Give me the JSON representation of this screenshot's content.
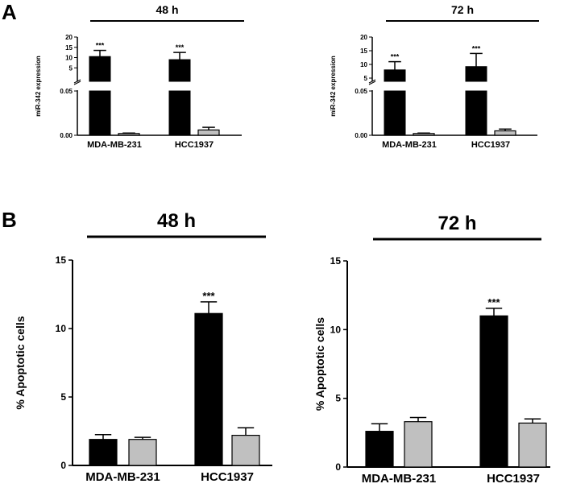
{
  "panel_labels": [
    "A",
    "B"
  ],
  "chart_data": [
    {
      "type": "bar",
      "panel": "A",
      "title": "48 h",
      "ylabel": "miR-342 expression",
      "axis_break": true,
      "ylim_lower": [
        0,
        0.05
      ],
      "ylim_upper": [
        0,
        20
      ],
      "lower_ticks": [
        "0.00",
        "0.05"
      ],
      "upper_ticks": [
        "5",
        "10",
        "15",
        "20"
      ],
      "categories": [
        "MDA-MB-231",
        "HCC1937"
      ],
      "series": [
        {
          "values": [
            10.5,
            9.0
          ],
          "errors": [
            3.0,
            3.5
          ],
          "color": "#000000"
        },
        {
          "values": [
            0.002,
            0.006
          ],
          "errors": [
            0.0005,
            0.003
          ],
          "color": "#c0c0c0"
        }
      ],
      "annotations": [
        {
          "text": "***",
          "category": 0,
          "series": 0
        },
        {
          "text": "***",
          "category": 1,
          "series": 0
        }
      ]
    },
    {
      "type": "bar",
      "panel": "A",
      "title": "72 h",
      "ylabel": "miR-342 expression",
      "axis_break": true,
      "ylim_lower": [
        0,
        0.05
      ],
      "ylim_upper": [
        5,
        20
      ],
      "lower_ticks": [
        "0.00",
        "0.05"
      ],
      "upper_ticks": [
        "5",
        "10",
        "15",
        "20"
      ],
      "categories": [
        "MDA-MB-231",
        "HCC1937"
      ],
      "series": [
        {
          "values": [
            8.0,
            9.2
          ],
          "errors": [
            3.0,
            4.8
          ],
          "color": "#000000"
        },
        {
          "values": [
            0.002,
            0.005
          ],
          "errors": [
            0.0005,
            0.002
          ],
          "color": "#c0c0c0"
        }
      ],
      "annotations": [
        {
          "text": "***",
          "category": 0,
          "series": 0
        },
        {
          "text": "***",
          "category": 1,
          "series": 0
        }
      ]
    },
    {
      "type": "bar",
      "panel": "B",
      "title": "48 h",
      "ylabel": "% Apoptotic cells",
      "ylim": [
        0,
        15
      ],
      "ticks": [
        "0",
        "5",
        "10",
        "15"
      ],
      "categories": [
        "MDA-MB-231",
        "HCC1937"
      ],
      "series": [
        {
          "values": [
            1.9,
            11.1
          ],
          "errors": [
            0.35,
            0.85
          ],
          "color": "#000000"
        },
        {
          "values": [
            1.9,
            2.2
          ],
          "errors": [
            0.15,
            0.55
          ],
          "color": "#c0c0c0"
        }
      ],
      "annotations": [
        {
          "text": "***",
          "category": 1,
          "series": 0
        }
      ]
    },
    {
      "type": "bar",
      "panel": "B",
      "title": "72 h",
      "ylabel": "% Apoptotic cells",
      "ylim": [
        0,
        15
      ],
      "ticks": [
        "0",
        "5",
        "10",
        "15"
      ],
      "categories": [
        "MDA-MB-231",
        "HCC1937"
      ],
      "series": [
        {
          "values": [
            2.6,
            11.0
          ],
          "errors": [
            0.55,
            0.55
          ],
          "color": "#000000"
        },
        {
          "values": [
            3.3,
            3.2
          ],
          "errors": [
            0.3,
            0.3
          ],
          "color": "#c0c0c0"
        }
      ],
      "annotations": [
        {
          "text": "***",
          "category": 1,
          "series": 0
        }
      ]
    }
  ]
}
